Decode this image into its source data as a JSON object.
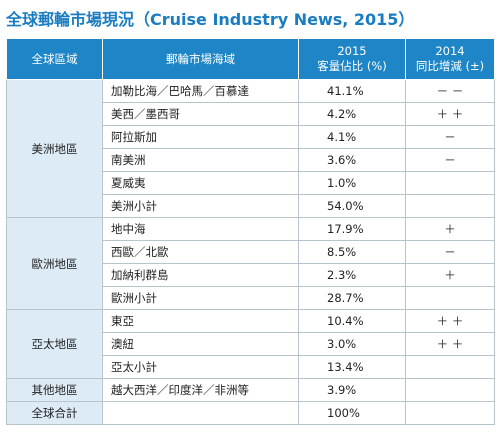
{
  "header": {
    "title": "全球郵輪市場現況（Cruise Industry News, 2015）"
  },
  "table": {
    "columns": [
      [
        "全球區域"
      ],
      [
        "郵輪市場海域"
      ],
      [
        "2015",
        "客量佔比 (%)"
      ],
      [
        "2014",
        "同比增減 (±)"
      ]
    ],
    "groups": [
      {
        "region": "美洲地區",
        "rows": [
          {
            "area": "加勒比海／巴哈馬／百慕達",
            "share": "41.1%",
            "change": "－ －"
          },
          {
            "area": "美西／墨西哥",
            "share": "4.2%",
            "change": "＋ ＋"
          },
          {
            "area": "阿拉斯加",
            "share": "4.1%",
            "change": "－"
          },
          {
            "area": "南美洲",
            "share": "3.6%",
            "change": "－"
          },
          {
            "area": "夏威夷",
            "share": "1.0%"
          },
          {
            "area": "美洲小計",
            "share": "54.0%"
          }
        ]
      },
      {
        "region": "歐洲地區",
        "rows": [
          {
            "area": "地中海",
            "share": "17.9%",
            "change": "＋"
          },
          {
            "area": "西歐／北歐",
            "share": "8.5%",
            "change": "－"
          },
          {
            "area": "加納利群島",
            "share": "2.3%",
            "change": "＋"
          },
          {
            "area": "歐洲小計",
            "share": "28.7%"
          }
        ]
      },
      {
        "region": "亞太地區",
        "rows": [
          {
            "area": "東亞",
            "share": "10.4%",
            "change": "＋ ＋"
          },
          {
            "area": "澳紐",
            "share": "3.0%",
            "change": "＋ ＋"
          },
          {
            "area": "亞太小計",
            "share": "13.4%"
          }
        ]
      },
      {
        "region": "其他地區",
        "rows": [
          {
            "area": "越大西洋／印度洋／非洲等",
            "share": "3.9%"
          }
        ]
      }
    ],
    "total": {
      "label": "全球合計",
      "share": "100%"
    }
  }
}
